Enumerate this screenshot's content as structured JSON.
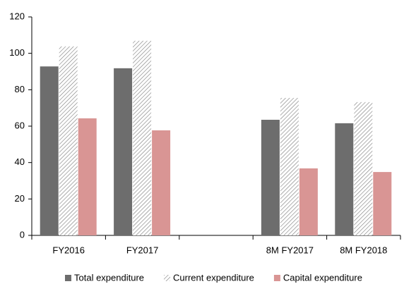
{
  "chart_data": {
    "type": "bar",
    "categories": [
      "FY2016",
      "FY2017",
      null,
      "8M FY2017",
      "8M FY2018"
    ],
    "series": [
      {
        "name": "Total expenditure",
        "color": "#6d6d6d",
        "values": [
          92.8,
          91.8,
          null,
          63.5,
          61.6
        ]
      },
      {
        "name": "Current expenditure",
        "color": "#7a7a7a",
        "pattern": "diagonal",
        "values": [
          103.8,
          106.9,
          null,
          75.5,
          73.2
        ]
      },
      {
        "name": "Capital expenditure",
        "color": "#d99594",
        "values": [
          64.3,
          57.7,
          null,
          36.8,
          34.8
        ]
      }
    ],
    "ylim": [
      0,
      120
    ],
    "yticks": [
      0,
      20,
      40,
      60,
      80,
      100,
      120
    ],
    "grid": false,
    "legend": "bottom"
  }
}
